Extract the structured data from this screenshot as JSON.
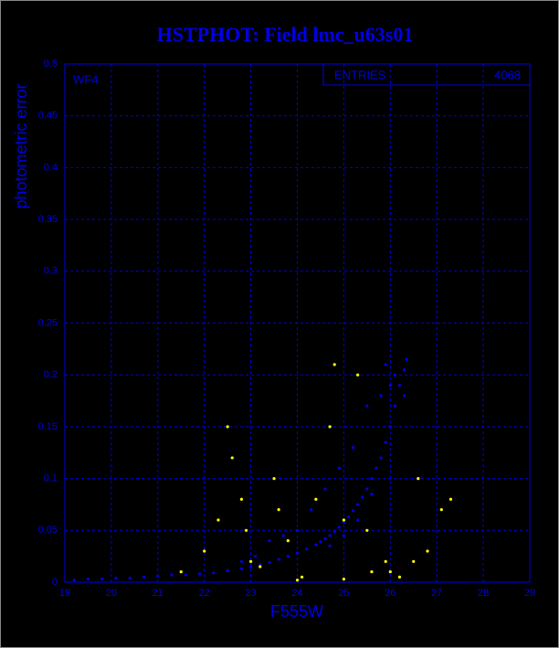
{
  "chart_data": {
    "type": "scatter",
    "title": "HSTPHOT: Field lmc_u63s01",
    "xlabel": "F555W",
    "ylabel": "photometric error",
    "annotation": "WF4",
    "stats": {
      "label": "ENTRIES",
      "value": 4068
    },
    "xlim": [
      19,
      29
    ],
    "ylim": [
      0,
      0.5
    ],
    "xticks": [
      19,
      20,
      21,
      22,
      23,
      24,
      25,
      26,
      27,
      28,
      29
    ],
    "yticks": [
      0,
      0.05,
      0.1,
      0.15,
      0.2,
      0.25,
      0.3,
      0.35,
      0.4,
      0.45,
      0.5
    ],
    "grid": true,
    "series": [
      {
        "color": "#0000e6",
        "x": [
          19.2,
          19.5,
          19.8,
          20.1,
          20.4,
          20.7,
          21.0,
          21.3,
          21.6,
          21.9,
          22.2,
          22.5,
          22.8,
          23.0,
          23.2,
          23.4,
          23.6,
          23.8,
          24.0,
          24.2,
          24.4,
          24.5,
          24.6,
          24.7,
          24.8,
          24.9,
          25.0,
          25.1,
          25.2,
          25.3,
          25.4,
          25.5,
          25.6,
          25.7,
          25.8,
          25.9,
          26.0,
          26.1,
          26.2,
          26.3,
          26.35,
          26.0,
          25.8,
          25.5,
          25.2,
          24.9,
          24.6,
          24.3,
          24.0,
          23.7,
          23.4,
          23.1,
          22.8,
          25.9,
          26.1,
          26.3,
          25.6,
          25.3,
          25.0,
          24.7
        ],
        "values": [
          0.002,
          0.003,
          0.003,
          0.004,
          0.004,
          0.005,
          0.006,
          0.007,
          0.007,
          0.008,
          0.009,
          0.011,
          0.013,
          0.015,
          0.017,
          0.019,
          0.022,
          0.025,
          0.028,
          0.032,
          0.036,
          0.039,
          0.042,
          0.045,
          0.049,
          0.053,
          0.058,
          0.063,
          0.069,
          0.075,
          0.082,
          0.09,
          0.1,
          0.11,
          0.12,
          0.135,
          0.15,
          0.17,
          0.19,
          0.205,
          0.215,
          0.19,
          0.18,
          0.17,
          0.13,
          0.11,
          0.09,
          0.07,
          0.05,
          0.045,
          0.04,
          0.025,
          0.02,
          0.21,
          0.2,
          0.18,
          0.085,
          0.06,
          0.045,
          0.035
        ]
      },
      {
        "color": "#ffff00",
        "x": [
          21.5,
          22.0,
          22.3,
          22.6,
          22.9,
          23.2,
          23.5,
          23.8,
          24.1,
          24.4,
          24.7,
          25.0,
          25.3,
          25.6,
          25.9,
          26.2,
          26.5,
          26.8,
          27.1,
          27.3,
          22.5,
          23.0,
          24.0,
          25.0,
          26.0,
          23.6,
          24.8,
          22.8,
          25.5,
          26.6
        ],
        "values": [
          0.01,
          0.03,
          0.06,
          0.12,
          0.05,
          0.015,
          0.1,
          0.04,
          0.005,
          0.08,
          0.15,
          0.003,
          0.2,
          0.01,
          0.02,
          0.005,
          0.02,
          0.03,
          0.07,
          0.08,
          0.15,
          0.02,
          0.002,
          0.06,
          0.01,
          0.07,
          0.21,
          0.08,
          0.05,
          0.1
        ]
      }
    ]
  }
}
